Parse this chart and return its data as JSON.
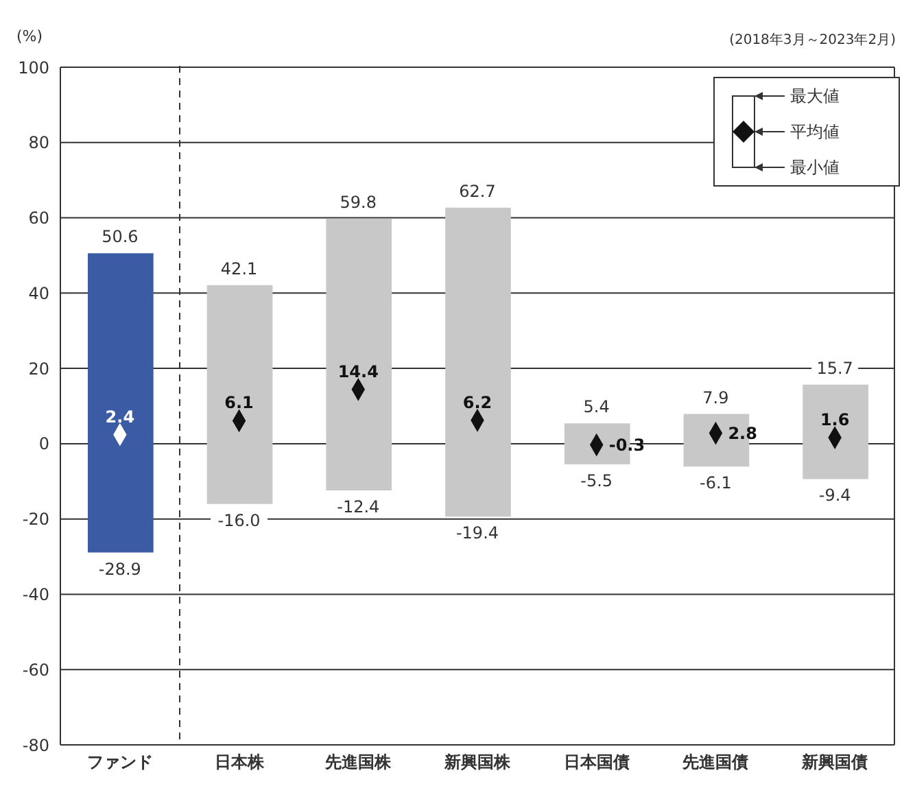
{
  "chart_data": {
    "type": "bar",
    "ylabel": "(%)",
    "categories": [
      "ファンド",
      "日本株",
      "先進国株",
      "新興国株",
      "日本国債",
      "先進国債",
      "新興国債"
    ],
    "ylim": [
      -80,
      100
    ],
    "yticks": [
      -80,
      -60,
      -40,
      -20,
      0,
      20,
      40,
      60,
      80,
      100
    ],
    "grid": "y",
    "series": [
      {
        "base": [
          -28.9,
          -16.0,
          -12.4,
          -19.4,
          -5.5,
          -6.1,
          -9.4
        ],
        "values": [
          79.5,
          58.1,
          72.2,
          82.1,
          10.9,
          14.0,
          25.1
        ],
        "colors": [
          "#3b5ba5",
          "#c8c8c8",
          "#c8c8c8",
          "#c8c8c8",
          "#c8c8c8",
          "#c8c8c8",
          "#c8c8c8"
        ]
      },
      {
        "type": "scatter",
        "marker": "diamond",
        "values": [
          2.4,
          6.1,
          14.4,
          6.2,
          -0.3,
          2.8,
          1.6
        ],
        "value_labels": [
          "2.4",
          "6.1",
          "14.4",
          "6.2",
          "-0.3",
          "2.8",
          "1.6"
        ],
        "colors": [
          "#ffffff",
          "#111111",
          "#111111",
          "#111111",
          "#111111",
          "#111111",
          "#111111"
        ]
      }
    ],
    "annotations": [
      "(2018年3月～2023年2月)",
      "最大値",
      "平均値",
      "最小値",
      {
        "text": "50.6",
        "x": "ファンド",
        "y": 50.6
      },
      {
        "text": "-28.9",
        "x": "ファンド",
        "y": -28.9
      },
      {
        "text": "42.1",
        "x": "日本株",
        "y": 42.1
      },
      {
        "text": "-16.0",
        "x": "日本株",
        "y": -16.0
      },
      {
        "text": "59.8",
        "x": "先進国株",
        "y": 59.8
      },
      {
        "text": "-12.4",
        "x": "先進国株",
        "y": -12.4
      },
      {
        "text": "62.7",
        "x": "新興国株",
        "y": 62.7
      },
      {
        "text": "-19.4",
        "x": "新興国株",
        "y": -19.4
      },
      {
        "text": "5.4",
        "x": "日本国債",
        "y": 5.4
      },
      {
        "text": "-5.5",
        "x": "日本国債",
        "y": -5.5
      },
      {
        "text": "7.9",
        "x": "先進国債",
        "y": 7.9
      },
      {
        "text": "-6.1",
        "x": "先進国債",
        "y": -6.1
      },
      {
        "text": "15.7",
        "x": "新興国債",
        "y": 15.7
      },
      {
        "text": "-9.4",
        "x": "新興国債",
        "y": -9.4
      }
    ]
  }
}
